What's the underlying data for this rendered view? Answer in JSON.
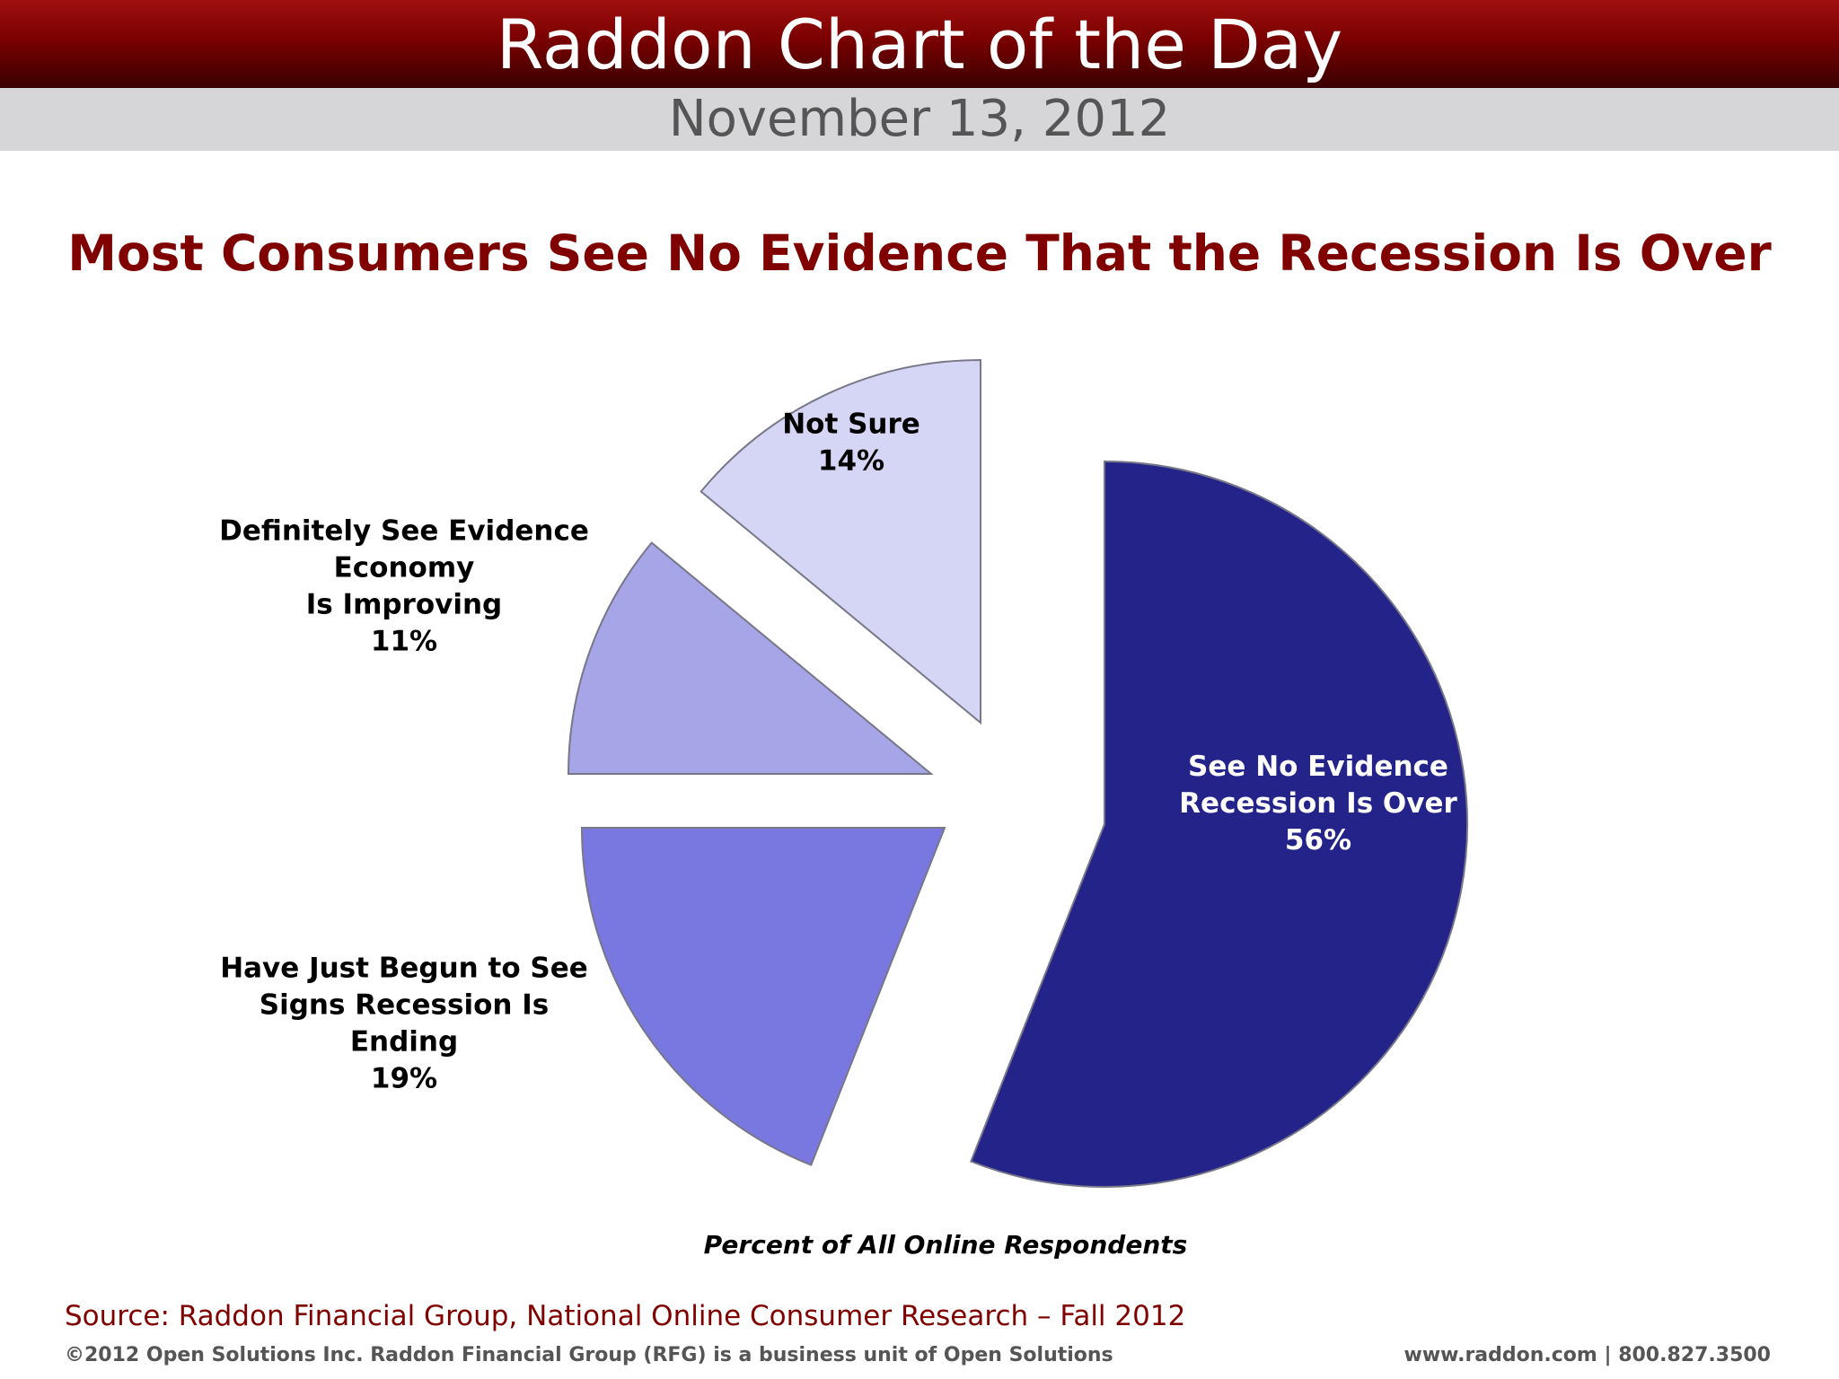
{
  "header": {
    "title": "Raddon Chart of the Day",
    "date": "November 13, 2012"
  },
  "chart_data": {
    "type": "pie",
    "title": "Most Consumers See No Evidence That the Recession Is Over",
    "subtitle": "Percent of All Online Respondents",
    "exploded": true,
    "slices": [
      {
        "label_lines": [
          "See No Evidence",
          "Recession Is Over"
        ],
        "value": 56,
        "value_label": "56%",
        "color": "#23238a",
        "text_color": "#ffffff"
      },
      {
        "label_lines": [
          "Have Just Begun to See",
          "Signs Recession Is",
          "Ending"
        ],
        "value": 19,
        "value_label": "19%",
        "color": "#7878e0",
        "text_color": "#000000"
      },
      {
        "label_lines": [
          "Definitely See Evidence",
          "Economy",
          "Is Improving"
        ],
        "value": 11,
        "value_label": "11%",
        "color": "#a5a5e8",
        "text_color": "#000000"
      },
      {
        "label_lines": [
          "Not Sure"
        ],
        "value": 14,
        "value_label": "14%",
        "color": "#d5d5f5",
        "text_color": "#000000"
      }
    ]
  },
  "footer": {
    "source": "Source: Raddon Financial Group, National Online Consumer Research – Fall 2012",
    "copyright": "©2012 Open Solutions Inc.  Raddon Financial Group (RFG) is a business unit of Open Solutions",
    "website": "www.raddon.com  |  800.827.3500"
  },
  "colors": {
    "header_red": "#7a0000",
    "title_red": "#800000",
    "date_bar": "#d6d6d8"
  }
}
